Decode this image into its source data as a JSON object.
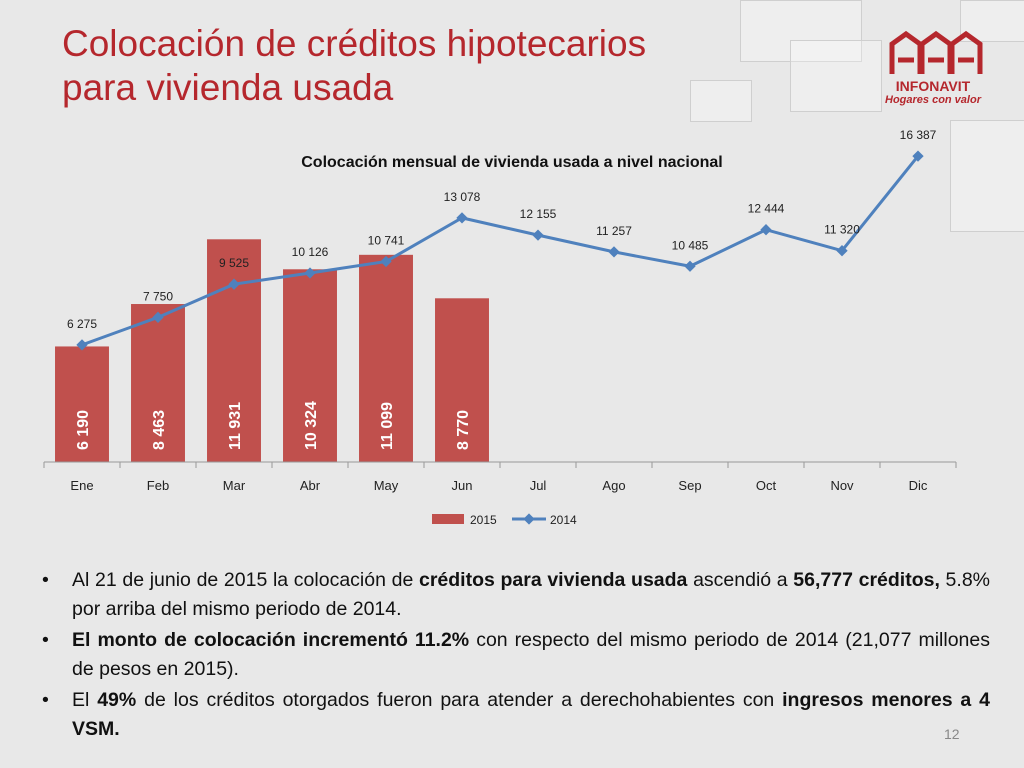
{
  "slide": {
    "title_line1": "Colocación de créditos hipotecarios",
    "title_line2": "para vivienda usada",
    "page_number": "12"
  },
  "logo": {
    "wordmark": "INFONAVIT",
    "tagline": "Hogares con valor",
    "brand_color": "#b5272d"
  },
  "chart_data": {
    "type": "bar",
    "title": "Colocación mensual de vivienda usada a nivel nacional",
    "categories": [
      "Ene",
      "Feb",
      "Mar",
      "Abr",
      "May",
      "Jun",
      "Jul",
      "Ago",
      "Sep",
      "Oct",
      "Nov",
      "Dic"
    ],
    "series": [
      {
        "name": "2015",
        "type": "bar",
        "color": "#c0504d",
        "values": [
          6190,
          8463,
          11931,
          10324,
          11099,
          8770,
          null,
          null,
          null,
          null,
          null,
          null
        ],
        "labels": [
          "6 190",
          "8 463",
          "11 931",
          "10 324",
          "11 099",
          "8 770"
        ]
      },
      {
        "name": "2014",
        "type": "line",
        "color": "#4f81bd",
        "values": [
          6275,
          7750,
          9525,
          10126,
          10741,
          13078,
          12155,
          11257,
          10485,
          12444,
          11320,
          16387
        ],
        "labels": [
          "6 275",
          "7 750",
          "9 525",
          "10 126",
          "10 741",
          "13 078",
          "12 155",
          "11 257",
          "10 485",
          "12 444",
          "11 320",
          "16 387"
        ]
      }
    ],
    "xlabel": "",
    "ylabel": "",
    "ylim": [
      0,
      18000
    ],
    "grid": false,
    "legend_position": "bottom"
  },
  "bullets": [
    [
      {
        "t": "Al 21 de junio de 2015 la colocación de ",
        "b": false
      },
      {
        "t": "créditos para vivienda usada",
        "b": true
      },
      {
        "t": " ascendió a ",
        "b": false
      },
      {
        "t": "56,777 créditos,",
        "b": true
      },
      {
        "t": " 5.8% por arriba del mismo periodo de 2014.",
        "b": false
      }
    ],
    [
      {
        "t": "El monto de colocación incrementó 11.2%",
        "b": true
      },
      {
        "t": " con respecto del mismo periodo de 2014 (21,077 millones de pesos en 2015).",
        "b": false
      }
    ],
    [
      {
        "t": "El ",
        "b": false
      },
      {
        "t": "49%",
        "b": true
      },
      {
        "t": " de los créditos otorgados fueron para atender a derechohabientes con ",
        "b": false
      },
      {
        "t": "ingresos menores a 4 VSM.",
        "b": true
      }
    ]
  ]
}
